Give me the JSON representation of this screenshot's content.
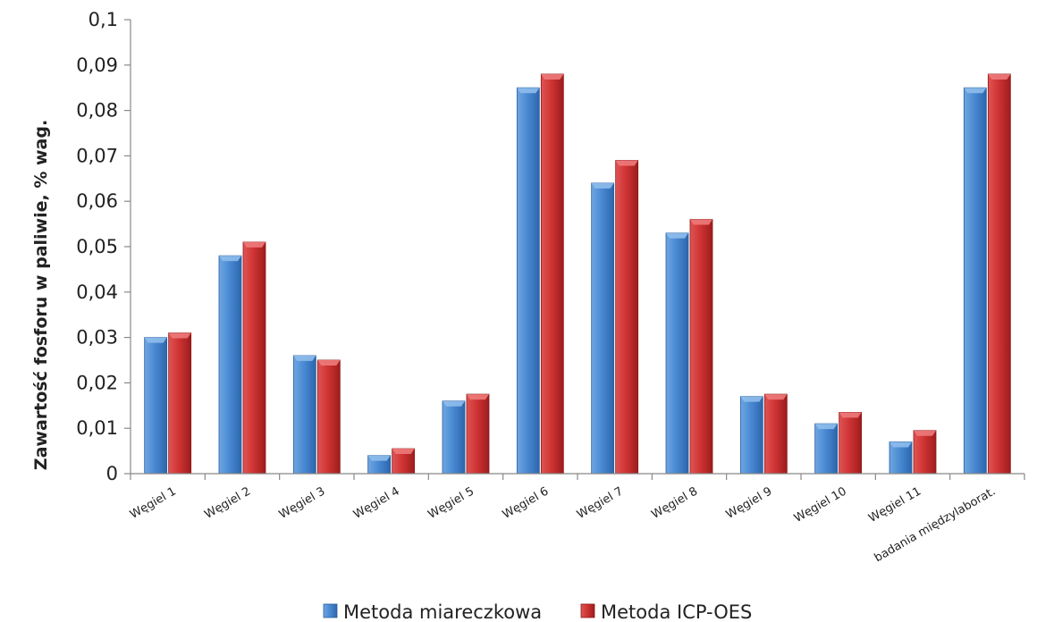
{
  "chart_data": {
    "type": "bar",
    "ylabel": "Zawartość fosforu w paliwie, % wag.",
    "xlabel": "",
    "ylim": [
      0,
      0.1
    ],
    "yticks": [
      "0",
      "0,01",
      "0,02",
      "0,03",
      "0,04",
      "0,05",
      "0,06",
      "0,07",
      "0,08",
      "0,09",
      "0,1"
    ],
    "categories": [
      "Węgiel 1",
      "Węgiel 2",
      "Węgiel 3",
      "Węgiel 4",
      "Węgiel 5",
      "Węgiel 6",
      "Węgiel 7",
      "Węgiel 8",
      "Węgiel 9",
      "Węgiel 10",
      "Węgiel 11",
      "badania międzylaborat."
    ],
    "series": [
      {
        "name": "Metoda miareczkowa",
        "color": "#3d7dc6",
        "values": [
          0.03,
          0.048,
          0.026,
          0.004,
          0.016,
          0.085,
          0.064,
          0.053,
          0.017,
          0.011,
          0.007,
          0.085
        ]
      },
      {
        "name": "Metoda ICP-OES",
        "color": "#c62c2c",
        "values": [
          0.031,
          0.051,
          0.025,
          0.0055,
          0.0175,
          0.088,
          0.069,
          0.056,
          0.0175,
          0.0135,
          0.0095,
          0.088
        ]
      }
    ],
    "grid": false,
    "legend_position": "bottom"
  }
}
